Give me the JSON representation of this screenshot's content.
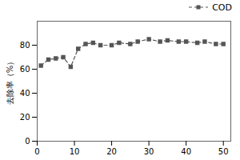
{
  "chart_data": {
    "type": "line",
    "ylabel": "去除率（%）",
    "x": [
      1,
      3,
      5,
      7,
      9,
      11,
      13,
      15,
      17,
      20,
      22,
      25,
      27,
      30,
      33,
      35,
      38,
      40,
      43,
      45,
      48,
      50
    ],
    "series": [
      {
        "name": "COD",
        "color": "#555555",
        "marker": "square",
        "line_style": "dashed",
        "values": [
          63,
          68,
          69,
          70,
          62,
          77,
          81,
          82,
          80,
          80,
          82,
          81,
          83,
          85,
          83,
          84,
          83,
          83,
          82,
          83,
          81,
          81
        ]
      }
    ],
    "xlim": [
      0,
      52
    ],
    "ylim": [
      0,
      100
    ],
    "xticks": [
      0,
      10,
      20,
      30,
      40,
      50
    ],
    "yticks": [
      0,
      20,
      40,
      60,
      80
    ],
    "legend": "right"
  }
}
